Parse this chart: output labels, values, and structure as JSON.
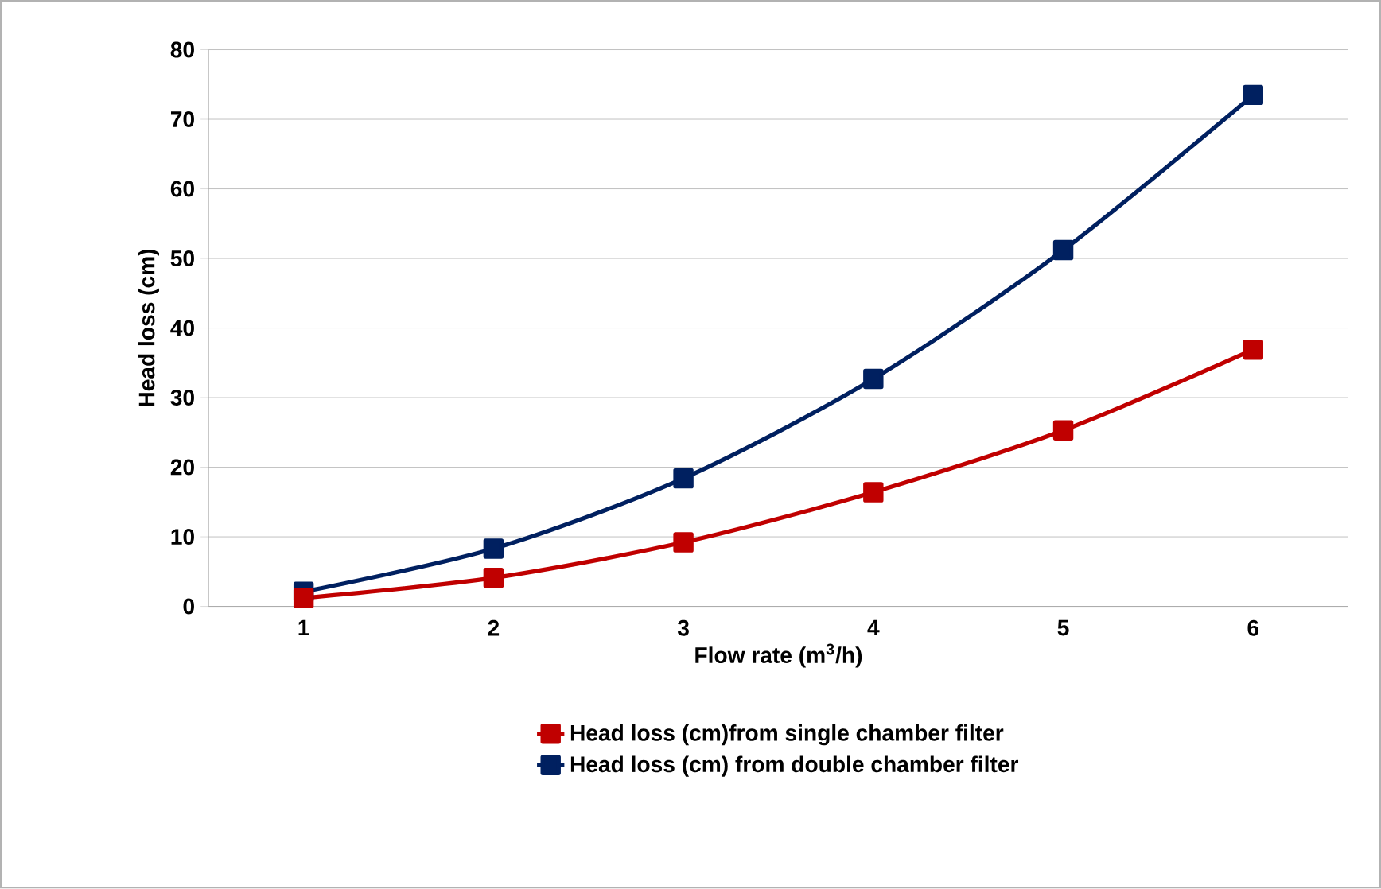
{
  "chart_data": {
    "type": "line",
    "xlabel": "Flow rate (m$^{3}$/h)",
    "ylabel": "Head loss (cm)",
    "categories": [
      "1",
      "2",
      "3",
      "4",
      "5",
      "6"
    ],
    "series": [
      {
        "name": "Head loss (cm)from single chamber filter",
        "color": "#c00000",
        "values": [
          1.2,
          4.1,
          9.2,
          16.4,
          25.3,
          36.9
        ]
      },
      {
        "name": "Head loss (cm) from double chamber filter",
        "color": "#002060",
        "values": [
          2.1,
          8.3,
          18.4,
          32.7,
          51.2,
          73.5
        ]
      }
    ],
    "ylim": [
      0,
      80
    ],
    "yticks": [
      0,
      10,
      20,
      30,
      40,
      50,
      60,
      70,
      80
    ],
    "grid": "y",
    "legend": "bottom",
    "marker": "square",
    "line_style": "solid"
  }
}
